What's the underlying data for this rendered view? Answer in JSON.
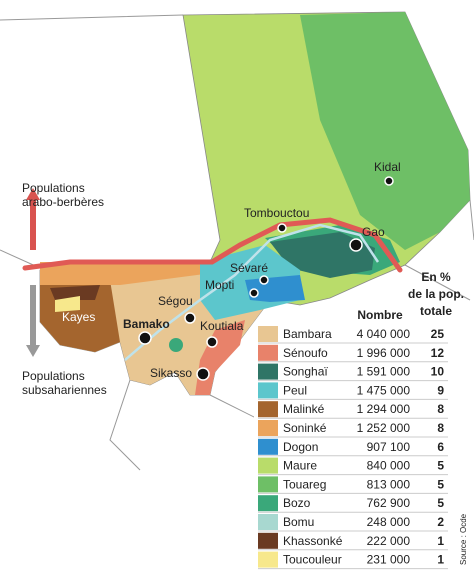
{
  "map": {
    "annotations": {
      "north": [
        "Populations",
        "arabo-berbères"
      ],
      "south": [
        "Populations",
        "subsahariennes"
      ]
    },
    "cities": [
      {
        "name": "Kidal"
      },
      {
        "name": "Tombouctou"
      },
      {
        "name": "Gao"
      },
      {
        "name": "Sévaré"
      },
      {
        "name": "Mopti"
      },
      {
        "name": "Ségou"
      },
      {
        "name": "Bamako"
      },
      {
        "name": "Koutiala"
      },
      {
        "name": "Sikasso"
      },
      {
        "name": "Kayes"
      }
    ],
    "legend": {
      "header": {
        "count": "Nombre",
        "share": [
          "En %",
          "de la pop.",
          "totale"
        ]
      },
      "rows": [
        {
          "name": "Bambara",
          "count": "4 040 000",
          "share": "25",
          "color": "#e8c692"
        },
        {
          "name": "Sénoufo",
          "count": "1 996 000",
          "share": "12",
          "color": "#e8826a"
        },
        {
          "name": "Songhaï",
          "count": "1 591 000",
          "share": "10",
          "color": "#2f7566"
        },
        {
          "name": "Peul",
          "count": "1 475 000",
          "share": "9",
          "color": "#5cc6cc"
        },
        {
          "name": "Malinké",
          "count": "1 294 000",
          "share": "8",
          "color": "#a4652e"
        },
        {
          "name": "Soninké",
          "count": "1 252 000",
          "share": "8",
          "color": "#eba45c"
        },
        {
          "name": "Dogon",
          "count": "907 100",
          "share": "6",
          "color": "#2f8fcf"
        },
        {
          "name": "Maure",
          "count": "840 000",
          "share": "5",
          "color": "#b9dc6a"
        },
        {
          "name": "Touareg",
          "count": "813 000",
          "share": "5",
          "color": "#6ebf66"
        },
        {
          "name": "Bozo",
          "count": "762 900",
          "share": "5",
          "color": "#3aa87a"
        },
        {
          "name": "Bomu",
          "count": "248 000",
          "share": "2",
          "color": "#a8d8d0"
        },
        {
          "name": "Khassonké",
          "count": "222 000",
          "share": "1",
          "color": "#6a3a22"
        },
        {
          "name": "Toucouleur",
          "count": "231 000",
          "share": "1",
          "color": "#f7e88c"
        }
      ]
    },
    "source": "Source : Ocde"
  }
}
